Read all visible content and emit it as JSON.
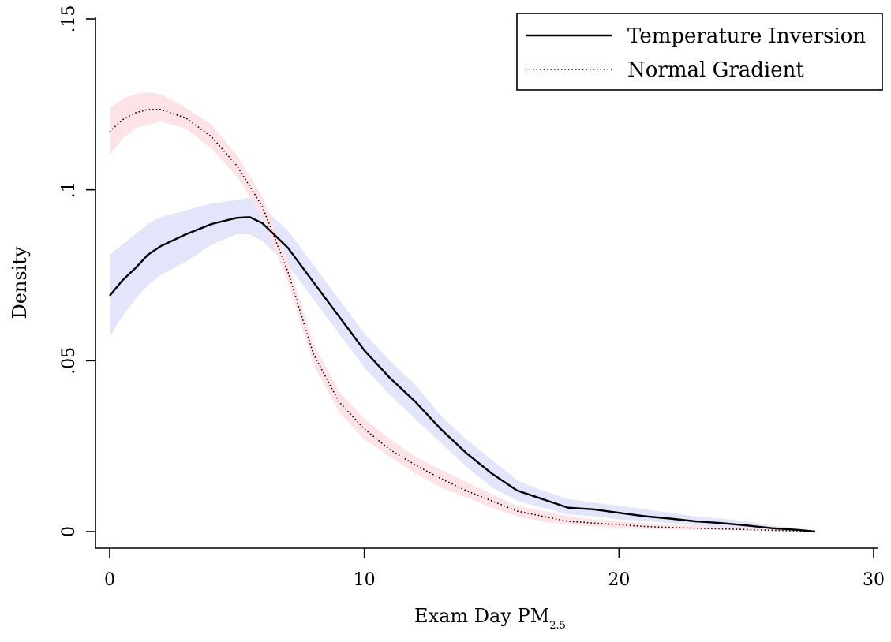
{
  "chart_data": {
    "type": "line",
    "xlabel": "Exam Day PM",
    "xlabel_subscript": "2.5",
    "ylabel": "Density",
    "xlim": [
      0,
      30
    ],
    "ylim": [
      0,
      0.15
    ],
    "x_ticks": [
      0,
      10,
      20,
      30
    ],
    "x_tick_labels": [
      "0",
      "10",
      "20",
      "30"
    ],
    "y_ticks": [
      0,
      0.05,
      0.1,
      0.15
    ],
    "y_tick_labels": [
      "0",
      ".05",
      ".1",
      ".15"
    ],
    "grid": false,
    "legend_position": "top-right",
    "series": [
      {
        "name": "Temperature Inversion",
        "line_style": "solid",
        "line_color": "#000000",
        "band_color": "#e3e5fb",
        "points": [
          [
            0,
            0.069,
            0.057,
            0.081
          ],
          [
            0.5,
            0.0735,
            0.063,
            0.084
          ],
          [
            1,
            0.077,
            0.068,
            0.087
          ],
          [
            1.5,
            0.081,
            0.072,
            0.09
          ],
          [
            2,
            0.0835,
            0.075,
            0.092
          ],
          [
            3,
            0.087,
            0.079,
            0.094
          ],
          [
            4,
            0.09,
            0.084,
            0.096
          ],
          [
            5,
            0.0918,
            0.087,
            0.097
          ],
          [
            5.5,
            0.092,
            0.087,
            0.0978
          ],
          [
            6,
            0.0902,
            0.085,
            0.095
          ],
          [
            7,
            0.083,
            0.078,
            0.088
          ],
          [
            8,
            0.073,
            0.068,
            0.078
          ],
          [
            9,
            0.063,
            0.058,
            0.068
          ],
          [
            10,
            0.053,
            0.048,
            0.058
          ],
          [
            11,
            0.045,
            0.04,
            0.05
          ],
          [
            12,
            0.038,
            0.033,
            0.043
          ],
          [
            13,
            0.03,
            0.026,
            0.034
          ],
          [
            14,
            0.023,
            0.019,
            0.027
          ],
          [
            15,
            0.017,
            0.013,
            0.021
          ],
          [
            16,
            0.012,
            0.009,
            0.015
          ],
          [
            17,
            0.0095,
            0.007,
            0.012
          ],
          [
            18,
            0.007,
            0.005,
            0.0095
          ],
          [
            19,
            0.0065,
            0.0045,
            0.0085
          ],
          [
            20,
            0.0055,
            0.0035,
            0.0075
          ],
          [
            21,
            0.0045,
            0.003,
            0.0065
          ],
          [
            22,
            0.0038,
            0.0025,
            0.0055
          ],
          [
            23,
            0.003,
            0.0018,
            0.0045
          ],
          [
            24,
            0.0025,
            0.0013,
            0.0038
          ],
          [
            25,
            0.0018,
            0.0009,
            0.003
          ],
          [
            26,
            0.001,
            0.0004,
            0.0018
          ],
          [
            27,
            0.0005,
            0.0001,
            0.001
          ],
          [
            27.7,
            0.0,
            0.0,
            0.0003
          ]
        ]
      },
      {
        "name": "Normal Gradient",
        "line_style": "dotted",
        "line_color": "#000000",
        "band_color": "#fde3e6",
        "points": [
          [
            0,
            0.117,
            0.11,
            0.124
          ],
          [
            0.5,
            0.1205,
            0.115,
            0.1265
          ],
          [
            1,
            0.1225,
            0.118,
            0.128
          ],
          [
            1.5,
            0.1235,
            0.119,
            0.1285
          ],
          [
            2,
            0.1235,
            0.12,
            0.128
          ],
          [
            3,
            0.121,
            0.118,
            0.124
          ],
          [
            4,
            0.1155,
            0.112,
            0.119
          ],
          [
            5,
            0.107,
            0.104,
            0.11
          ],
          [
            6,
            0.095,
            0.092,
            0.098
          ],
          [
            7,
            0.076,
            0.073,
            0.079
          ],
          [
            8,
            0.052,
            0.049,
            0.055
          ],
          [
            9,
            0.038,
            0.035,
            0.041
          ],
          [
            10,
            0.03,
            0.027,
            0.033
          ],
          [
            11,
            0.024,
            0.022,
            0.027
          ],
          [
            12,
            0.0195,
            0.017,
            0.022
          ],
          [
            13,
            0.0155,
            0.013,
            0.018
          ],
          [
            14,
            0.012,
            0.01,
            0.0145
          ],
          [
            15,
            0.009,
            0.007,
            0.011
          ],
          [
            16,
            0.006,
            0.0045,
            0.0075
          ],
          [
            17,
            0.0045,
            0.003,
            0.006
          ],
          [
            18,
            0.003,
            0.002,
            0.0045
          ],
          [
            19,
            0.0025,
            0.0015,
            0.0035
          ],
          [
            20,
            0.002,
            0.001,
            0.003
          ],
          [
            21,
            0.0015,
            0.0008,
            0.0025
          ],
          [
            22,
            0.0012,
            0.0006,
            0.002
          ],
          [
            23,
            0.001,
            0.0005,
            0.0017
          ],
          [
            24,
            0.0008,
            0.0004,
            0.0014
          ],
          [
            25,
            0.0006,
            0.0003,
            0.0011
          ],
          [
            26,
            0.0004,
            0.0001,
            0.0008
          ],
          [
            27,
            0.0002,
            0.0,
            0.0005
          ],
          [
            27.7,
            0.0,
            0.0,
            0.0002
          ]
        ]
      }
    ]
  }
}
